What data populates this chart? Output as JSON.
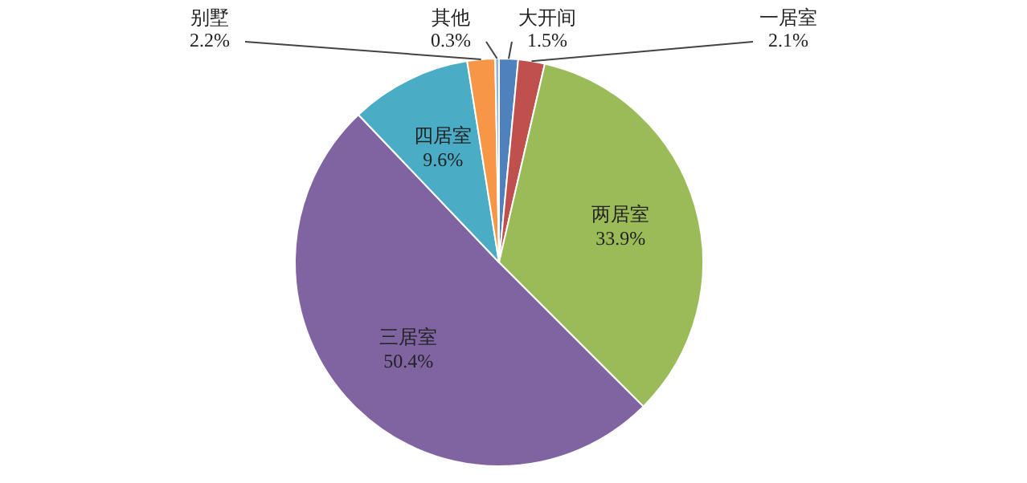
{
  "chart_data": {
    "type": "pie",
    "categories": [
      "大开间",
      "一居室",
      "两居室",
      "三居室",
      "四居室",
      "别墅",
      "其他"
    ],
    "values": [
      1.5,
      2.1,
      33.9,
      50.4,
      9.6,
      2.2,
      0.3
    ],
    "colors": [
      "#4f81bd",
      "#c0504d",
      "#9bbb59",
      "#8064a2",
      "#4bacc6",
      "#f79646",
      "#95b3d7"
    ],
    "value_labels": [
      "1.5%",
      "2.1%",
      "33.9%",
      "50.4%",
      "9.6%",
      "2.2%",
      "0.3%"
    ],
    "legend": false
  }
}
